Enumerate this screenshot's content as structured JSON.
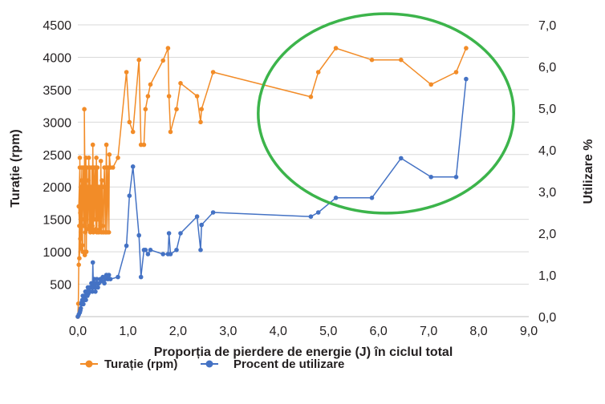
{
  "chart_data": {
    "type": "line",
    "xlabel": "Proporția de pierdere de energie (J) în ciclul total",
    "ylabel_left": "Turație (rpm)",
    "ylabel_right": "Utilizare %",
    "xlim": [
      0,
      9
    ],
    "ylim_left": [
      0,
      4500
    ],
    "ylim_right": [
      0,
      7
    ],
    "x_ticks": [
      "0,0",
      "1,0",
      "2,0",
      "3,0",
      "4,0",
      "5,0",
      "6,0",
      "7,0",
      "8,0",
      "9,0"
    ],
    "y_left_ticks": [
      "500",
      "1000",
      "1500",
      "2000",
      "2500",
      "3000",
      "3500",
      "4000",
      "4500"
    ],
    "y_left_tick_values": [
      500,
      1000,
      1500,
      2000,
      2500,
      3000,
      3500,
      4000,
      4500
    ],
    "y_right_ticks": [
      "0,0",
      "1,0",
      "2,0",
      "3,0",
      "4,0",
      "5,0",
      "6,0",
      "7,0"
    ],
    "grid": "horizontal",
    "legend_position": "bottom-left",
    "highlight": {
      "shape": "ellipse",
      "color": "#3cb44b",
      "cx": 6.15,
      "cy": 1.95,
      "rx": 2.55,
      "ry": 2.08
    },
    "series": [
      {
        "name": "Turație (rpm)",
        "axis": "left",
        "color": "#f28c28",
        "x": [
          0.0,
          0.01,
          0.02,
          0.03,
          0.02,
          0.04,
          0.03,
          0.05,
          0.04,
          0.06,
          0.05,
          0.07,
          0.06,
          0.08,
          0.07,
          0.09,
          0.08,
          0.1,
          0.09,
          0.11,
          0.12,
          0.13,
          0.14,
          0.13,
          0.15,
          0.16,
          0.17,
          0.18,
          0.17,
          0.19,
          0.2,
          0.21,
          0.22,
          0.23,
          0.24,
          0.25,
          0.26,
          0.27,
          0.28,
          0.29,
          0.3,
          0.31,
          0.32,
          0.33,
          0.34,
          0.35,
          0.36,
          0.37,
          0.38,
          0.39,
          0.4,
          0.41,
          0.42,
          0.43,
          0.44,
          0.45,
          0.46,
          0.47,
          0.48,
          0.49,
          0.5,
          0.51,
          0.52,
          0.53,
          0.55,
          0.57,
          0.58,
          0.6,
          0.62,
          0.63,
          0.65,
          0.7,
          0.8,
          0.97,
          1.03,
          1.1,
          1.22,
          1.26,
          1.32,
          1.35,
          1.4,
          1.45,
          1.7,
          1.8,
          1.82,
          1.85,
          1.97,
          2.05,
          2.38,
          2.45,
          2.47,
          2.7,
          4.65,
          4.8,
          5.15,
          5.87,
          6.45,
          7.05,
          7.55,
          7.75
        ],
        "y": [
          0,
          200,
          800,
          1400,
          1700,
          2300,
          900,
          1200,
          2450,
          1050,
          1600,
          2000,
          1300,
          2300,
          1400,
          1100,
          2100,
          1000,
          1500,
          2300,
          1400,
          2100,
          950,
          3200,
          1300,
          2450,
          1000,
          2300,
          1500,
          2000,
          1350,
          2100,
          2450,
          1400,
          2300,
          1300,
          2000,
          1350,
          2300,
          1400,
          2650,
          1300,
          2300,
          1500,
          2000,
          2300,
          1350,
          2450,
          1300,
          2300,
          1500,
          2000,
          1300,
          2000,
          1350,
          1400,
          2400,
          1300,
          2100,
          2000,
          1400,
          1300,
          2000,
          2300,
          1300,
          2650,
          1300,
          2300,
          1300,
          2500,
          2300,
          2300,
          2450,
          3770,
          3000,
          2850,
          3960,
          2650,
          2650,
          3200,
          3400,
          3580,
          3950,
          4140,
          3400,
          2850,
          3200,
          3600,
          3400,
          3000,
          3200,
          3770,
          3390,
          3770,
          4140,
          3960,
          3960,
          3580,
          3770,
          4140
        ]
      },
      {
        "name": "Procent de utilizare",
        "axis": "right",
        "color": "#4472c4",
        "x": [
          0.0,
          0.02,
          0.04,
          0.05,
          0.06,
          0.07,
          0.08,
          0.09,
          0.1,
          0.11,
          0.12,
          0.13,
          0.14,
          0.15,
          0.16,
          0.17,
          0.18,
          0.19,
          0.2,
          0.21,
          0.22,
          0.23,
          0.24,
          0.25,
          0.27,
          0.29,
          0.3,
          0.31,
          0.33,
          0.35,
          0.37,
          0.38,
          0.4,
          0.42,
          0.45,
          0.47,
          0.5,
          0.53,
          0.55,
          0.57,
          0.6,
          0.62,
          0.65,
          0.8,
          0.97,
          1.03,
          1.1,
          1.22,
          1.26,
          1.32,
          1.35,
          1.4,
          1.45,
          1.7,
          1.8,
          1.82,
          1.85,
          1.97,
          2.05,
          2.38,
          2.45,
          2.47,
          2.7,
          4.65,
          4.8,
          5.15,
          5.87,
          6.45,
          7.05,
          7.55,
          7.75
        ],
        "y": [
          0.0,
          0.05,
          0.1,
          0.15,
          0.2,
          0.3,
          0.35,
          0.4,
          0.5,
          0.3,
          0.4,
          0.5,
          0.4,
          0.6,
          0.4,
          0.5,
          0.6,
          0.5,
          0.7,
          0.55,
          0.6,
          0.7,
          0.6,
          0.7,
          0.8,
          0.6,
          1.3,
          0.7,
          0.9,
          0.6,
          0.8,
          0.9,
          0.7,
          0.8,
          0.9,
          0.85,
          0.95,
          0.8,
          0.9,
          1.0,
          0.9,
          1.0,
          0.9,
          0.95,
          1.7,
          2.9,
          3.6,
          1.95,
          0.95,
          1.6,
          1.6,
          1.5,
          1.6,
          1.5,
          1.5,
          2.0,
          1.5,
          1.6,
          2.0,
          2.4,
          1.6,
          2.2,
          2.5,
          2.4,
          2.5,
          2.85,
          2.85,
          3.8,
          3.35,
          3.35,
          5.7
        ]
      }
    ]
  }
}
